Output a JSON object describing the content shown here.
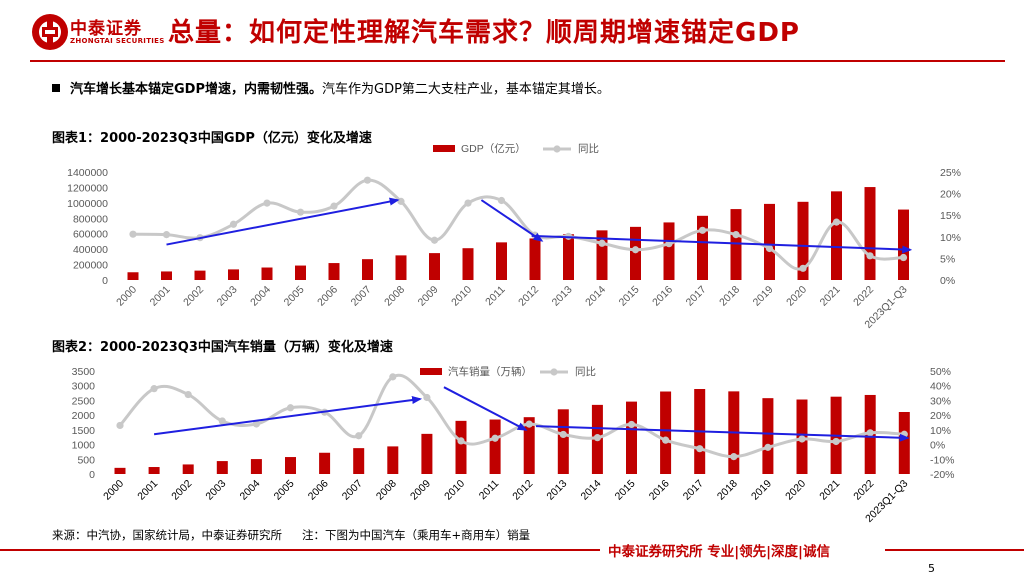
{
  "brand": {
    "logo_cn": "中泰证券",
    "logo_en": "ZHONGTAI SECURITIES",
    "color": "#c00000"
  },
  "slide": {
    "title": "总量：如何定性理解汽车需求？顺周期增速锚定GDP",
    "bullet_bold": "汽车增长基本锚定GDP增速，内需韧性强。",
    "bullet_text": "汽车作为GDP第二大支柱产业，基本锚定其增长。",
    "page_number": "5"
  },
  "footer": {
    "source": "来源：中汽协，国家统计局，中泰证券研究所",
    "note": "注：下图为中国汽车（乘用车+商用车）销量",
    "brand_tagline": "中泰证券研究所 专业|领先|深度|诚信"
  },
  "chart_data": [
    {
      "type": "bar",
      "title": "图表1：2000-2023Q3中国GDP（亿元）变化及增速",
      "categories": [
        "2000",
        "2001",
        "2002",
        "2003",
        "2004",
        "2005",
        "2006",
        "2007",
        "2008",
        "2009",
        "2010",
        "2011",
        "2012",
        "2013",
        "2014",
        "2015",
        "2016",
        "2017",
        "2018",
        "2019",
        "2020",
        "2021",
        "2022",
        "2023Q1-Q3"
      ],
      "series": [
        {
          "name": "GDP（亿元）",
          "type": "bar",
          "axis": "left",
          "color": "#c00000",
          "values": [
            100280,
            110863,
            121717,
            137422,
            161840,
            187319,
            219438,
            270092,
            319245,
            348518,
            412119,
            487940,
            538580,
            592963,
            643563,
            688858,
            746395,
            832036,
            919281,
            986515,
            1013567,
            1149237,
            1204724,
            913027
          ]
        },
        {
          "name": "同比",
          "type": "line",
          "axis": "right",
          "color": "#c8c8c8",
          "values": [
            10.6,
            10.5,
            9.8,
            12.9,
            17.8,
            15.7,
            17.1,
            23.1,
            18.2,
            9.2,
            17.8,
            18.4,
            10.4,
            10.1,
            8.5,
            7.0,
            8.4,
            11.5,
            10.5,
            7.3,
            2.7,
            13.4,
            5.6,
            5.2
          ]
        }
      ],
      "y_left": {
        "ylim": [
          0,
          1400000
        ],
        "ticks": [
          0,
          200000,
          400000,
          600000,
          800000,
          1000000,
          1200000,
          1400000
        ]
      },
      "y_right": {
        "ylim": [
          0,
          25
        ],
        "ticks": [
          0,
          5,
          10,
          15,
          20,
          25
        ],
        "tick_labels": [
          "0%",
          "5%",
          "10%",
          "15%",
          "20%",
          "25%"
        ]
      },
      "trend_arrows": [
        {
          "from": {
            "x": 1,
            "y": 8.2
          },
          "to": {
            "x": 7.9,
            "y": 18.5
          }
        },
        {
          "from": {
            "x": 10.4,
            "y": 18.5
          },
          "to": {
            "x": 12.2,
            "y": 9.1
          }
        },
        {
          "from": {
            "x": 11.9,
            "y": 10.2
          },
          "to": {
            "x": 23.2,
            "y": 7.0
          }
        }
      ],
      "legend_position": "top-center"
    },
    {
      "type": "bar",
      "title": "图表2：2000-2023Q3中国汽车销量（万辆）变化及增速",
      "categories": [
        "2000",
        "2001",
        "2002",
        "2003",
        "2004",
        "2005",
        "2006",
        "2007",
        "2008",
        "2009",
        "2010",
        "2011",
        "2012",
        "2013",
        "2014",
        "2015",
        "2016",
        "2017",
        "2018",
        "2019",
        "2020",
        "2021",
        "2022",
        "2023Q1-Q3"
      ],
      "series": [
        {
          "name": "汽车销量（万辆）",
          "type": "bar",
          "axis": "left",
          "color": "#c00000",
          "values": [
            209,
            237,
            325,
            439,
            507,
            576,
            722,
            879,
            938,
            1364,
            1806,
            1851,
            1931,
            2198,
            2349,
            2460,
            2803,
            2888,
            2808,
            2577,
            2531,
            2627,
            2686,
            2107
          ]
        },
        {
          "name": "同比",
          "type": "line",
          "axis": "right",
          "color": "#c8c8c8",
          "values": [
            13,
            38,
            34,
            16,
            14,
            25,
            22,
            6,
            46,
            32,
            2.5,
            4.3,
            13.9,
            6.9,
            4.7,
            13.7,
            3.0,
            -2.8,
            -8.2,
            -1.9,
            3.8,
            2.1,
            8.0,
            7.0
          ]
        }
      ],
      "y_left": {
        "ylim": [
          0,
          3500
        ],
        "ticks": [
          0,
          500,
          1000,
          1500,
          2000,
          2500,
          3000,
          3500
        ]
      },
      "y_right": {
        "ylim": [
          -20,
          50
        ],
        "ticks": [
          -20,
          -10,
          0,
          10,
          20,
          30,
          40,
          50
        ],
        "tick_labels": [
          "-20%",
          "-10%",
          "0%",
          "10%",
          "20%",
          "30%",
          "40%",
          "50%"
        ]
      },
      "trend_arrows": [
        {
          "from": {
            "x": 1,
            "y": 7
          },
          "to": {
            "x": 8.8,
            "y": 31
          }
        },
        {
          "from": {
            "x": 9.5,
            "y": 39
          },
          "to": {
            "x": 11.9,
            "y": 10
          }
        },
        {
          "from": {
            "x": 12.2,
            "y": 12.5
          },
          "to": {
            "x": 23.1,
            "y": 4.5
          }
        }
      ],
      "legend_position": "top-center"
    }
  ]
}
